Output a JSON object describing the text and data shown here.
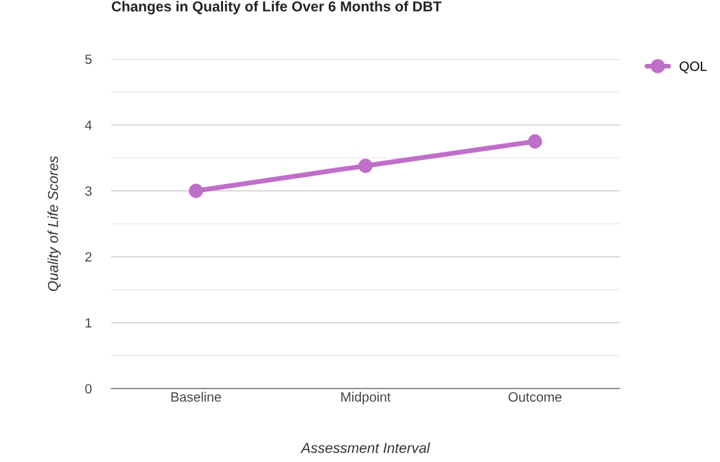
{
  "chart_data": {
    "type": "line",
    "title": "Changes in Quality of Life Over 6 Months of DBT",
    "xlabel": "Assessment Interval",
    "ylabel": "Quality of Life Scores",
    "categories": [
      "Baseline",
      "Midpoint",
      "Outcome"
    ],
    "series": [
      {
        "name": "QOL",
        "color": "#bf6fc8",
        "values": [
          3.0,
          3.38,
          3.75
        ]
      }
    ],
    "ylim": [
      0,
      5
    ],
    "yticks": [
      0,
      {
        "value": 0.5,
        "label": null
      },
      1,
      {
        "value": 1.5,
        "label": null
      },
      2,
      {
        "value": 2.5,
        "label": null
      },
      3,
      {
        "value": 3.5,
        "label": null
      },
      4,
      {
        "value": 4.5,
        "label": null
      },
      5
    ],
    "grid": "y",
    "legend": "top right",
    "marker": "circle",
    "line_style": "solid"
  }
}
